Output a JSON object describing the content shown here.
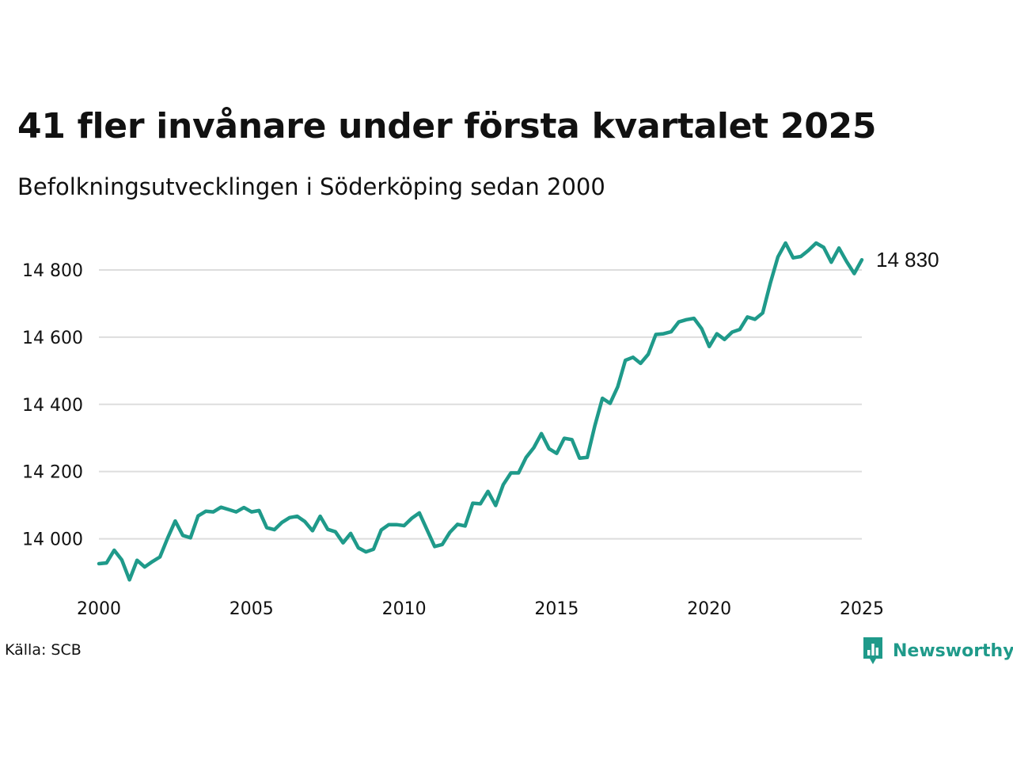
{
  "header": {
    "title": "41 fler invånare under första kvartalet 2025",
    "subtitle": "Befolkningsutvecklingen i Söderköping sedan 2000"
  },
  "footer": {
    "source": "Källa: SCB",
    "brand": "Newsworthy",
    "brand_icon": "newsworthy-logo-icon"
  },
  "colors": {
    "line": "#1f9a8a",
    "grid": "#dddddd",
    "brand": "#1f9a8a"
  },
  "chart_data": {
    "type": "line",
    "title": "41 fler invånare under första kvartalet 2025",
    "subtitle": "Befolkningsutvecklingen i Söderköping sedan 2000",
    "xlabel": "",
    "ylabel": "",
    "xlim": [
      2000,
      2025
    ],
    "ylim": [
      13860,
      14920
    ],
    "y_ticks": [
      14000,
      14200,
      14400,
      14600,
      14800
    ],
    "y_tick_labels": [
      "14 000",
      "14 200",
      "14 400",
      "14 600",
      "14 800"
    ],
    "x_ticks": [
      2000,
      2005,
      2010,
      2015,
      2020,
      2025
    ],
    "x_tick_labels": [
      "2000",
      "2005",
      "2010",
      "2015",
      "2020",
      "2025"
    ],
    "grid": "horizontal",
    "end_label": "14 830",
    "series": [
      {
        "x": [
          2000.0,
          2000.25,
          2000.5,
          2000.75,
          2001.0,
          2001.25,
          2001.5,
          2001.75,
          2002.0,
          2002.25,
          2002.5,
          2002.75,
          2003.0,
          2003.25,
          2003.5,
          2003.75,
          2004.0,
          2004.25,
          2004.5,
          2004.75,
          2005.0,
          2005.25,
          2005.5,
          2005.75,
          2006.0,
          2006.25,
          2006.5,
          2006.75,
          2007.0,
          2007.25,
          2007.5,
          2007.75,
          2008.0,
          2008.25,
          2008.5,
          2008.75,
          2009.0,
          2009.25,
          2009.5,
          2009.75,
          2010.0,
          2010.25,
          2010.5,
          2010.75,
          2011.0,
          2011.25,
          2011.5,
          2011.75,
          2012.0,
          2012.25,
          2012.5,
          2012.75,
          2013.0,
          2013.25,
          2013.5,
          2013.75,
          2014.0,
          2014.25,
          2014.5,
          2014.75,
          2015.0,
          2015.25,
          2015.5,
          2015.75,
          2016.0,
          2016.25,
          2016.5,
          2016.75,
          2017.0,
          2017.25,
          2017.5,
          2017.75,
          2018.0,
          2018.25,
          2018.5,
          2018.75,
          2019.0,
          2019.25,
          2019.5,
          2019.75,
          2020.0,
          2020.25,
          2020.5,
          2020.75,
          2021.0,
          2021.25,
          2021.5,
          2021.75,
          2022.0,
          2022.25,
          2022.5,
          2022.75,
          2023.0,
          2023.25,
          2023.5,
          2023.75,
          2024.0,
          2024.25,
          2024.5,
          2024.75,
          2025.0
        ],
        "values": [
          13926,
          13928,
          13966,
          13937,
          13878,
          13936,
          13916,
          13932,
          13946,
          14002,
          14053,
          14010,
          14003,
          14068,
          14082,
          14080,
          14094,
          14087,
          14080,
          14093,
          14080,
          14084,
          14033,
          14027,
          14049,
          14063,
          14067,
          14051,
          14024,
          14067,
          14028,
          14021,
          13988,
          14016,
          13973,
          13961,
          13969,
          14026,
          14042,
          14042,
          14039,
          14061,
          14077,
          14027,
          13977,
          13983,
          14019,
          14043,
          14038,
          14106,
          14104,
          14141,
          14099,
          14161,
          14196,
          14196,
          14242,
          14271,
          14313,
          14268,
          14254,
          14299,
          14295,
          14240,
          14242,
          14336,
          14418,
          14403,
          14452,
          14531,
          14540,
          14522,
          14549,
          14608,
          14610,
          14616,
          14645,
          14652,
          14656,
          14625,
          14572,
          14610,
          14593,
          14615,
          14623,
          14660,
          14653,
          14672,
          14760,
          14839,
          14880,
          14836,
          14840,
          14858,
          14880,
          14867,
          14823,
          14865,
          14825,
          14789,
          14830
        ]
      }
    ]
  }
}
